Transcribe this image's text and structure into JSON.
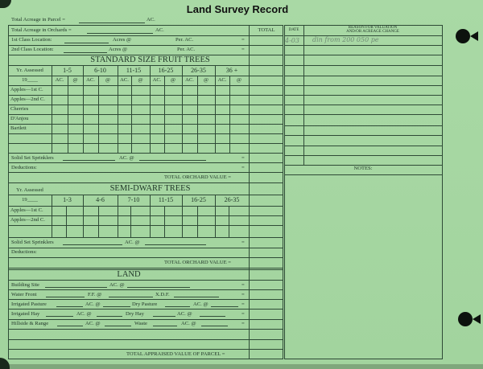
{
  "title": "Land Survey Record",
  "header": {
    "parcel_label": "Total Acreage in Parcel =",
    "parcel_unit": "AC.",
    "orchards_label": "Total Acreage in Orchards =",
    "orchards_unit": "AC.",
    "total_header": "TOTAL",
    "class1": {
      "label": "1st Class Location:",
      "acres": "Acres @",
      "per": "Per. AC.",
      "eq": "="
    },
    "class2": {
      "label": "2nd Class Location:",
      "acres": "Acres @",
      "per": "Per. AC.",
      "eq": "="
    }
  },
  "standard": {
    "title": "STANDARD SIZE FRUIT TREES",
    "yr_assessed": "Yr. Assessed",
    "year_prefix": "19____",
    "ranges": [
      "1-5",
      "6-10",
      "11-15",
      "16-25",
      "26-35",
      "36 +"
    ],
    "ac": "AC.",
    "at": "@",
    "rows": [
      "Apples—1st C.",
      "Apples—2nd C.",
      "Cherries",
      "D'Anjou",
      "Bartlett"
    ],
    "sprinklers": {
      "label": "Solid Set Sprinklers",
      "ac": "AC. @",
      "eq": "="
    },
    "deductions": {
      "label": "Deductions:",
      "eq": "="
    },
    "total": "TOTAL ORCHARD VALUE ="
  },
  "semi_dwarf": {
    "title": "SEMI-DWARF TREES",
    "yr_assessed": "Yr. Assessed",
    "year_prefix": "19____",
    "ranges": [
      "1-3",
      "4-6",
      "7-10",
      "11-15",
      "16-25",
      "26-35"
    ],
    "rows": [
      "Apples—1st C.",
      "Apples—2nd C."
    ],
    "sprinklers": {
      "label": "Solid Set Sprinklers",
      "ac": "AC. @",
      "eq": "="
    },
    "deductions": {
      "label": "Deductions:"
    },
    "total": "TOTAL ORCHARD VALUE ="
  },
  "land": {
    "title": "LAND",
    "building_site": {
      "label": "Building Site",
      "ac": "AC. @",
      "eq": "="
    },
    "water_front": {
      "label": "Water Front",
      "ff": "F.F. @",
      "xdf": "X.D.F.",
      "eq": "="
    },
    "irrigated_pasture": {
      "label": "Irrigated Pasture",
      "ac": "AC. @",
      "dry": "Dry Pasture",
      "ac2": "AC. @",
      "eq": "="
    },
    "irrigated_hay": {
      "label": "Irrigated Hay",
      "ac": "AC. @",
      "dry": "Dry Hay",
      "ac2": "AC. @",
      "eq": "="
    },
    "hillside": {
      "label": "Hillside & Range",
      "ac": "AC. @",
      "waste": "Waste",
      "ac2": "AC. @",
      "eq": "="
    },
    "total": "TOTAL APPRAISED VALUE OF PARCEL ="
  },
  "changes": {
    "date_header": "DATE",
    "reason_header_1": "REASON FOR VALUATION",
    "reason_header_2": "AND/OR ACREAGE CHANGE",
    "entries": [
      {
        "date": "4-03",
        "reason": "din from 200 050 pe"
      }
    ],
    "notes_label": "NOTES:"
  },
  "colors": {
    "paper": "#a6d7a2",
    "ink": "#2e4a36"
  }
}
